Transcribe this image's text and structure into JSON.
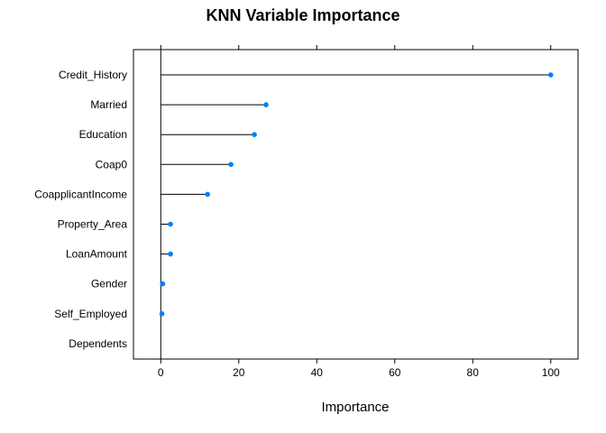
{
  "chart_data": {
    "type": "dotplot",
    "title": "KNN Variable Importance",
    "xlabel": "Importance",
    "ylabel": "",
    "xlim": [
      -7,
      107
    ],
    "xticks": [
      0,
      20,
      40,
      60,
      80,
      100
    ],
    "grid": false,
    "legend": "none",
    "colors": {
      "point": "#0080ff",
      "stem": "#000000",
      "frame": "#000000"
    },
    "categories": [
      "Credit_History",
      "Married",
      "Education",
      "Coap0",
      "CoapplicantIncome",
      "Property_Area",
      "LoanAmount",
      "Gender",
      "Self_Employed",
      "Dependents"
    ],
    "values": [
      100,
      27,
      24,
      18,
      12,
      2.5,
      2.5,
      0.5,
      0.3,
      0
    ]
  }
}
